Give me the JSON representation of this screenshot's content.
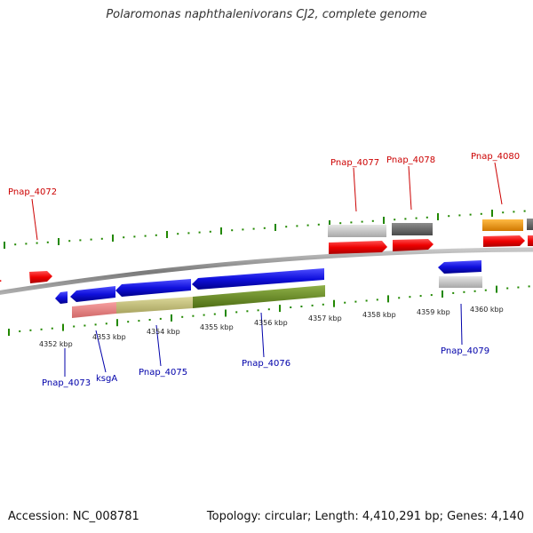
{
  "title": "Polaromonas naphthalenivorans CJ2, complete genome",
  "footer": {
    "accession": "Accession: NC_008781",
    "summary": "Topology: circular; Length: 4,410,291 bp; Genes: 4,140"
  },
  "colors": {
    "forward_label": "#cc0000",
    "reverse_label": "#0000aa",
    "tick": "#228800",
    "backbone": "#888888"
  },
  "scale_labels": [
    "4352 kbp",
    "4353 kbp",
    "4354 kbp",
    "4355 kbp",
    "4356 kbp",
    "4357 kbp",
    "4358 kbp",
    "4359 kbp",
    "4360 kbp"
  ],
  "forward_gene_labels": [
    "Pnap_4072",
    "Pnap_4077",
    "Pnap_4078",
    "Pnap_4080"
  ],
  "reverse_gene_labels": [
    "Pnap_4073",
    "ksgA",
    "Pnap_4075",
    "Pnap_4076",
    "Pnap_4079"
  ]
}
